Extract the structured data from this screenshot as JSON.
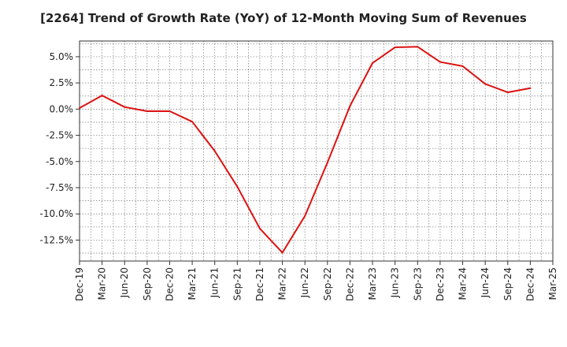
{
  "chart_data": {
    "type": "line",
    "title": "[2264]  Trend of Growth Rate (YoY) of 12-Month Moving Sum of Revenues",
    "xlabel": "",
    "ylabel": "",
    "ylim": [
      -14.5,
      6.5
    ],
    "grid": true,
    "legend": "none",
    "x_tick_labels": [
      "Dec-19",
      "Mar-20",
      "Jun-20",
      "Sep-20",
      "Dec-20",
      "Mar-21",
      "Jun-21",
      "Sep-21",
      "Dec-21",
      "Mar-22",
      "Jun-22",
      "Sep-22",
      "Dec-22",
      "Mar-23",
      "Jun-23",
      "Sep-23",
      "Dec-23",
      "Mar-24",
      "Jun-24",
      "Sep-24",
      "Dec-24",
      "Mar-25"
    ],
    "y_ticks": [
      5.0,
      2.5,
      0.0,
      -2.5,
      -5.0,
      -7.5,
      -10.0,
      -12.5
    ],
    "y_tick_labels": [
      "5.0%",
      "2.5%",
      "0.0%",
      "-2.5%",
      "-5.0%",
      "-7.5%",
      "-10.0%",
      "-12.5%"
    ],
    "series": [
      {
        "color": "#dd1111",
        "x": [
          "Dec-19",
          "Mar-20",
          "Jun-20",
          "Sep-20",
          "Dec-20",
          "Mar-21",
          "Jun-21",
          "Sep-21",
          "Dec-21",
          "Mar-22",
          "Jun-22",
          "Sep-22",
          "Dec-22",
          "Mar-23",
          "Jun-23",
          "Sep-23",
          "Dec-23",
          "Mar-24",
          "Jun-24",
          "Sep-24",
          "Dec-24"
        ],
        "values": [
          0.1,
          1.3,
          0.2,
          -0.2,
          -0.2,
          -1.2,
          -4.0,
          -7.4,
          -11.4,
          -13.7,
          -10.2,
          -5.1,
          0.3,
          4.4,
          5.9,
          5.95,
          4.5,
          4.1,
          2.4,
          1.6,
          2.0
        ]
      }
    ]
  }
}
